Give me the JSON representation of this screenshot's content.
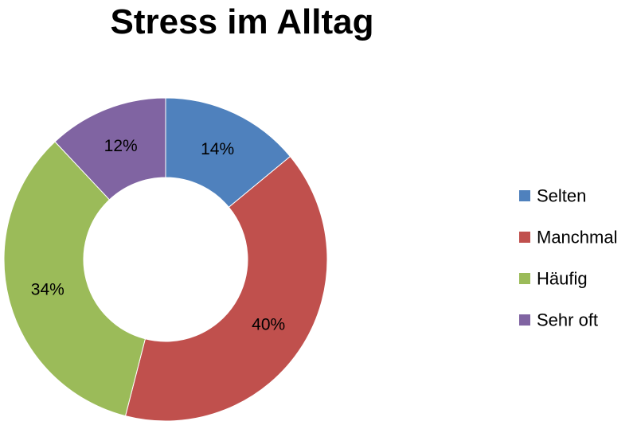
{
  "chart_data": {
    "type": "donut",
    "title": "Stress im Alltag",
    "categories": [
      "Selten",
      "Manchmal",
      "Häufig",
      "Sehr oft"
    ],
    "values": [
      14,
      40,
      34,
      12
    ],
    "labels": [
      "14%",
      "40%",
      "34%",
      "12%"
    ],
    "colors": [
      "#4F81BD",
      "#C0504D",
      "#9BBB59",
      "#8064A2"
    ],
    "legend_position": "right",
    "start_angle_deg": 0,
    "direction": "clockwise"
  }
}
